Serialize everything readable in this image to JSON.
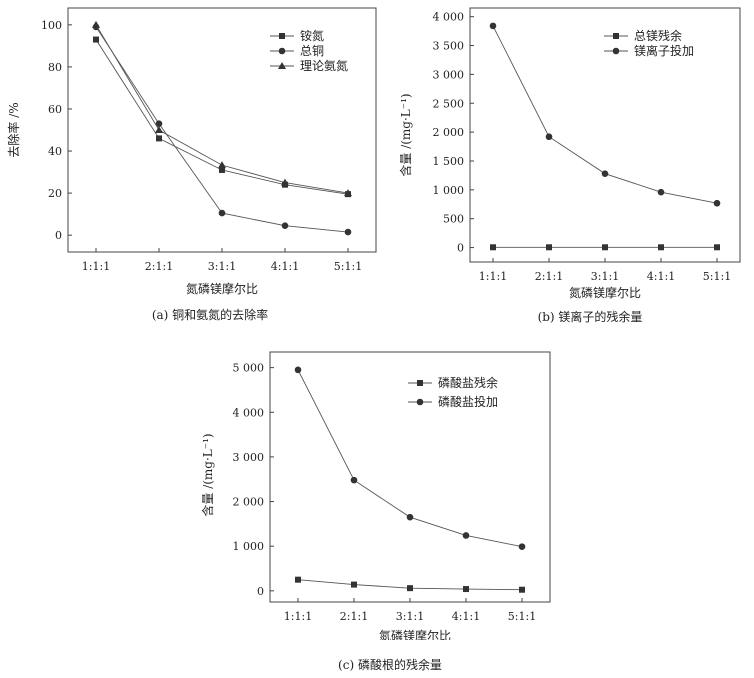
{
  "chart_data": [
    {
      "type": "line",
      "caption": "(a) 铜和氨氮的去除率",
      "xlabel": "氮磷镁摩尔比",
      "ylabel": "去除率 /%",
      "categories": [
        "1:1:1",
        "2:1:1",
        "3:1:1",
        "4:1:1",
        "5:1:1"
      ],
      "ylim": [
        -8,
        108
      ],
      "yticks": [
        0,
        20,
        40,
        60,
        80,
        100
      ],
      "ytick_labels": [
        "0",
        "20",
        "40",
        "60",
        "80",
        "100"
      ],
      "legend_position": "top-right",
      "series": [
        {
          "name": "铵氮",
          "marker": "square",
          "values": [
            93,
            46,
            31,
            24,
            19.5
          ]
        },
        {
          "name": "总铜",
          "marker": "circle",
          "values": [
            99,
            53,
            10.5,
            4.5,
            1.5
          ]
        },
        {
          "name": "理论氨氮",
          "marker": "triangle",
          "values": [
            100,
            50,
            33.3,
            25,
            20
          ]
        }
      ]
    },
    {
      "type": "line",
      "caption": "(b) 镁离子的残余量",
      "xlabel": "氮磷镁摩尔比",
      "ylabel": "含量 /(mg·L⁻¹)",
      "categories": [
        "1:1:1",
        "2:1:1",
        "3:1:1",
        "4:1:1",
        "5:1:1"
      ],
      "ylim": [
        -250,
        4150
      ],
      "yticks": [
        0,
        500,
        1000,
        1500,
        2000,
        2500,
        3000,
        3500,
        4000
      ],
      "ytick_labels": [
        "0",
        "500",
        "1 000",
        "1 500",
        "2 000",
        "2 500",
        "3 000",
        "3 500",
        "4 000"
      ],
      "legend_position": "top-right",
      "series": [
        {
          "name": "总镁残余",
          "marker": "square",
          "values": [
            5,
            5,
            5,
            5,
            5
          ]
        },
        {
          "name": "镁离子投加",
          "marker": "circle",
          "values": [
            3840,
            1920,
            1280,
            960,
            768
          ]
        }
      ]
    },
    {
      "type": "line",
      "caption": "(c) 磷酸根的残余量",
      "xlabel": "氮磷镁摩尔比",
      "ylabel": "含量 /(mg·L⁻¹)",
      "categories": [
        "1:1:1",
        "2:1:1",
        "3:1:1",
        "4:1:1",
        "5:1:1"
      ],
      "ylim": [
        -250,
        5350
      ],
      "yticks": [
        0,
        1000,
        2000,
        3000,
        4000,
        5000
      ],
      "ytick_labels": [
        "0",
        "1 000",
        "2 000",
        "3 000",
        "4 000",
        "5 000"
      ],
      "legend_position": "top-right",
      "series": [
        {
          "name": "磷酸盐残余",
          "marker": "square",
          "values": [
            250,
            140,
            60,
            40,
            25
          ]
        },
        {
          "name": "磷酸盐投加",
          "marker": "circle",
          "values": [
            4950,
            2480,
            1650,
            1240,
            990
          ]
        }
      ]
    }
  ]
}
